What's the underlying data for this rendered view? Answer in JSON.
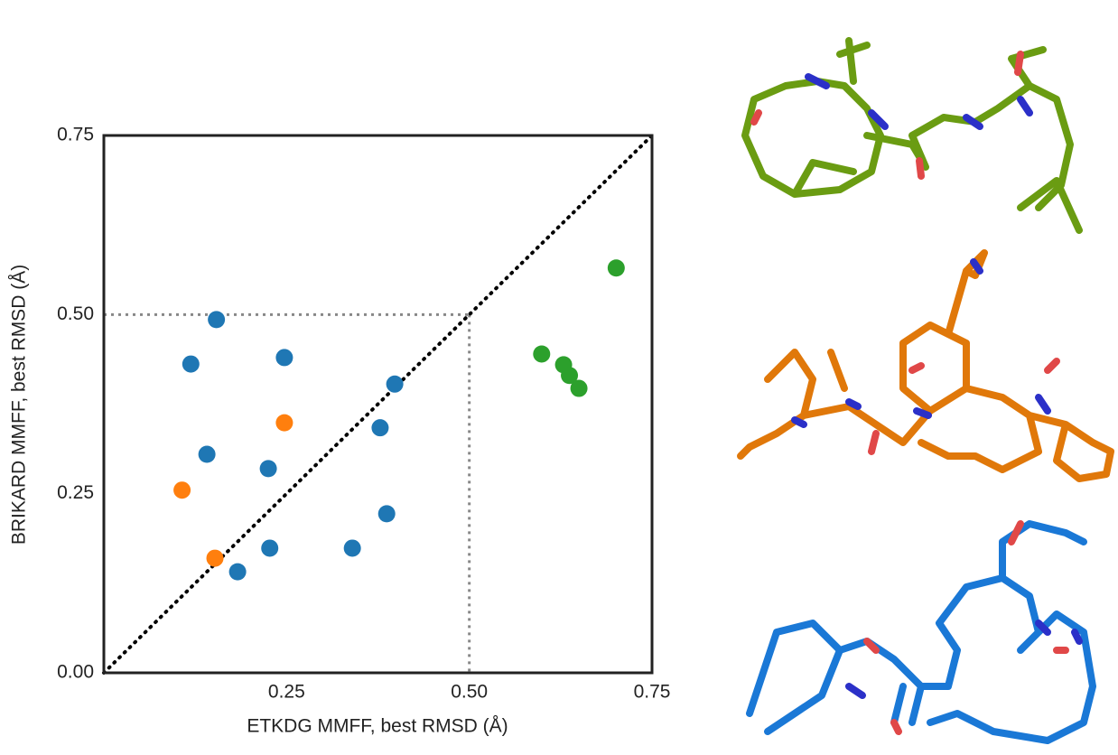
{
  "chart_data": {
    "type": "scatter",
    "xlabel": "ETKDG MMFF, best RMSD (Å)",
    "ylabel": "BRIKARD MMFF, best RMSD (Å)",
    "xlim": [
      0,
      0.75
    ],
    "ylim": [
      0,
      0.75
    ],
    "xticks": [
      {
        "value": 0.25,
        "label": "0.25"
      },
      {
        "value": 0.5,
        "label": "0.50"
      },
      {
        "value": 0.75,
        "label": "0.75"
      }
    ],
    "yticks": [
      {
        "value": 0,
        "label": "0.00"
      },
      {
        "value": 0.25,
        "label": "0.25"
      },
      {
        "value": 0.5,
        "label": "0.50"
      },
      {
        "value": 0.75,
        "label": "0.75"
      }
    ],
    "grid": false,
    "series": [
      {
        "color": "#1f77b4",
        "x": [
          0.154,
          0.119,
          0.247,
          0.398,
          0.378,
          0.141,
          0.225,
          0.387,
          0.227,
          0.34,
          0.183
        ],
        "values": [
          0.493,
          0.431,
          0.44,
          0.403,
          0.342,
          0.305,
          0.285,
          0.222,
          0.174,
          0.174,
          0.141
        ]
      },
      {
        "color": "#ff7f0e",
        "x": [
          0.247,
          0.107,
          0.152
        ],
        "values": [
          0.349,
          0.255,
          0.16
        ]
      },
      {
        "color": "#2ca02c",
        "x": [
          0.701,
          0.599,
          0.629,
          0.637,
          0.65
        ],
        "values": [
          0.565,
          0.445,
          0.43,
          0.415,
          0.397
        ]
      }
    ]
  }
}
